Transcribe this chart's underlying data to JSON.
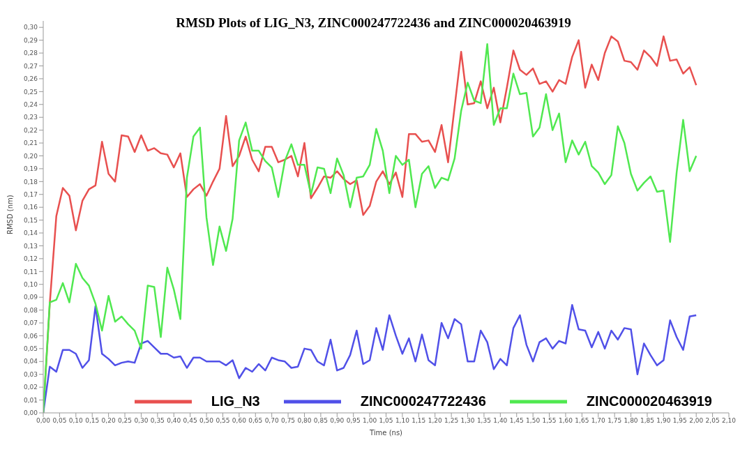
{
  "chart_data": {
    "type": "line",
    "title": "RMSD Plots of LIG_N3, ZINC000247722436 and ZINC000020463919",
    "xlabel": "Time (ns)",
    "ylabel": "RMSD (nm)",
    "x": [
      0,
      0.02,
      0.04,
      0.06,
      0.08,
      0.1,
      0.12,
      0.14,
      0.16,
      0.18,
      0.2,
      0.22,
      0.24,
      0.26,
      0.28,
      0.3,
      0.32,
      0.34,
      0.36,
      0.38,
      0.4,
      0.42,
      0.44,
      0.46,
      0.48,
      0.5,
      0.52,
      0.54,
      0.56,
      0.58,
      0.6,
      0.62,
      0.64,
      0.66,
      0.68,
      0.7,
      0.72,
      0.74,
      0.76,
      0.78,
      0.8,
      0.82,
      0.84,
      0.86,
      0.88,
      0.9,
      0.92,
      0.94,
      0.96,
      0.98,
      1,
      1.02,
      1.04,
      1.06,
      1.08,
      1.1,
      1.12,
      1.14,
      1.16,
      1.18,
      1.2,
      1.22,
      1.24,
      1.26,
      1.28,
      1.3,
      1.32,
      1.34,
      1.36,
      1.38,
      1.4,
      1.42,
      1.44,
      1.46,
      1.48,
      1.5,
      1.52,
      1.54,
      1.56,
      1.58,
      1.6,
      1.62,
      1.64,
      1.66,
      1.68,
      1.7,
      1.72,
      1.74,
      1.76,
      1.78,
      1.8,
      1.82,
      1.84,
      1.86,
      1.88,
      1.9,
      1.92,
      1.94,
      1.96,
      1.98,
      2
    ],
    "series": [
      {
        "name": "LIG_N3",
        "color": "#e8504f",
        "values": [
          0,
          0.085,
          0.153,
          0.175,
          0.169,
          0.142,
          0.165,
          0.174,
          0.177,
          0.211,
          0.186,
          0.18,
          0.216,
          0.215,
          0.203,
          0.216,
          0.204,
          0.206,
          0.202,
          0.201,
          0.191,
          0.202,
          0.168,
          0.174,
          0.178,
          0.169,
          0.18,
          0.19,
          0.231,
          0.192,
          0.2,
          0.215,
          0.197,
          0.188,
          0.207,
          0.207,
          0.195,
          0.197,
          0.2,
          0.184,
          0.21,
          0.167,
          0.175,
          0.184,
          0.183,
          0.188,
          0.182,
          0.178,
          0.181,
          0.154,
          0.161,
          0.18,
          0.188,
          0.178,
          0.187,
          0.168,
          0.217,
          0.217,
          0.211,
          0.212,
          0.203,
          0.224,
          0.195,
          0.238,
          0.281,
          0.24,
          0.241,
          0.258,
          0.237,
          0.253,
          0.226,
          0.253,
          0.282,
          0.267,
          0.263,
          0.268,
          0.256,
          0.258,
          0.25,
          0.259,
          0.256,
          0.277,
          0.29,
          0.253,
          0.271,
          0.259,
          0.28,
          0.293,
          0.289,
          0.274,
          0.273,
          0.267,
          0.282,
          0.277,
          0.27,
          0.293,
          0.274,
          0.275,
          0.264,
          0.269,
          0.255
        ]
      },
      {
        "name": "ZINC000247722436",
        "color": "#5050e8",
        "values": [
          0,
          0.036,
          0.032,
          0.049,
          0.049,
          0.046,
          0.035,
          0.041,
          0.083,
          0.046,
          0.042,
          0.037,
          0.039,
          0.04,
          0.039,
          0.054,
          0.056,
          0.051,
          0.046,
          0.046,
          0.043,
          0.044,
          0.035,
          0.043,
          0.043,
          0.04,
          0.04,
          0.04,
          0.037,
          0.041,
          0.027,
          0.035,
          0.032,
          0.038,
          0.033,
          0.043,
          0.041,
          0.04,
          0.035,
          0.036,
          0.05,
          0.049,
          0.04,
          0.037,
          0.057,
          0.033,
          0.035,
          0.045,
          0.064,
          0.038,
          0.041,
          0.066,
          0.049,
          0.076,
          0.06,
          0.046,
          0.058,
          0.04,
          0.061,
          0.041,
          0.037,
          0.07,
          0.058,
          0.073,
          0.069,
          0.04,
          0.04,
          0.064,
          0.055,
          0.034,
          0.042,
          0.037,
          0.066,
          0.076,
          0.053,
          0.04,
          0.055,
          0.058,
          0.05,
          0.056,
          0.054,
          0.084,
          0.065,
          0.064,
          0.051,
          0.063,
          0.05,
          0.064,
          0.057,
          0.066,
          0.065,
          0.03,
          0.054,
          0.045,
          0.037,
          0.041,
          0.072,
          0.059,
          0.049,
          0.075,
          0.076
        ]
      },
      {
        "name": "ZINC000020463919",
        "color": "#50e850",
        "values": [
          0,
          0.086,
          0.088,
          0.101,
          0.086,
          0.116,
          0.105,
          0.099,
          0.085,
          0.064,
          0.091,
          0.071,
          0.075,
          0.069,
          0.064,
          0.05,
          0.099,
          0.098,
          0.059,
          0.113,
          0.096,
          0.073,
          0.183,
          0.215,
          0.222,
          0.152,
          0.115,
          0.145,
          0.126,
          0.151,
          0.212,
          0.226,
          0.204,
          0.204,
          0.196,
          0.191,
          0.168,
          0.196,
          0.209,
          0.193,
          0.193,
          0.17,
          0.191,
          0.19,
          0.171,
          0.198,
          0.185,
          0.16,
          0.183,
          0.184,
          0.193,
          0.221,
          0.204,
          0.171,
          0.2,
          0.193,
          0.197,
          0.16,
          0.186,
          0.192,
          0.175,
          0.183,
          0.181,
          0.198,
          0.235,
          0.257,
          0.243,
          0.241,
          0.287,
          0.224,
          0.237,
          0.237,
          0.264,
          0.248,
          0.249,
          0.215,
          0.222,
          0.248,
          0.22,
          0.233,
          0.195,
          0.212,
          0.201,
          0.211,
          0.192,
          0.187,
          0.178,
          0.185,
          0.223,
          0.21,
          0.186,
          0.173,
          0.179,
          0.184,
          0.172,
          0.173,
          0.133,
          0.187,
          0.228,
          0.188,
          0.2
        ]
      }
    ],
    "xlim": [
      0,
      2.1
    ],
    "xticks": [
      {
        "value": 0,
        "label": "0,00"
      },
      {
        "value": 0.05,
        "label": "0,05"
      },
      {
        "value": 0.1,
        "label": "0,10"
      },
      {
        "value": 0.15,
        "label": "0,15"
      },
      {
        "value": 0.2,
        "label": "0,20"
      },
      {
        "value": 0.25,
        "label": "0,25"
      },
      {
        "value": 0.3,
        "label": "0,30"
      },
      {
        "value": 0.35,
        "label": "0,35"
      },
      {
        "value": 0.4,
        "label": "0,40"
      },
      {
        "value": 0.45,
        "label": "0,45"
      },
      {
        "value": 0.5,
        "label": "0,50"
      },
      {
        "value": 0.55,
        "label": "0,55"
      },
      {
        "value": 0.6,
        "label": "0,60"
      },
      {
        "value": 0.65,
        "label": "0,65"
      },
      {
        "value": 0.7,
        "label": "0,70"
      },
      {
        "value": 0.75,
        "label": "0,75"
      },
      {
        "value": 0.8,
        "label": "0,80"
      },
      {
        "value": 0.85,
        "label": "0,85"
      },
      {
        "value": 0.9,
        "label": "0,90"
      },
      {
        "value": 0.95,
        "label": "0,95"
      },
      {
        "value": 1,
        "label": "1,00"
      },
      {
        "value": 1.05,
        "label": "1,05"
      },
      {
        "value": 1.1,
        "label": "1,10"
      },
      {
        "value": 1.15,
        "label": "1,15"
      },
      {
        "value": 1.2,
        "label": "1,20"
      },
      {
        "value": 1.25,
        "label": "1,25"
      },
      {
        "value": 1.3,
        "label": "1,30"
      },
      {
        "value": 1.35,
        "label": "1,35"
      },
      {
        "value": 1.4,
        "label": "1,40"
      },
      {
        "value": 1.45,
        "label": "1,45"
      },
      {
        "value": 1.5,
        "label": "1,50"
      },
      {
        "value": 1.55,
        "label": "1,55"
      },
      {
        "value": 1.6,
        "label": "1,60"
      },
      {
        "value": 1.65,
        "label": "1,65"
      },
      {
        "value": 1.7,
        "label": "1,70"
      },
      {
        "value": 1.75,
        "label": "1,75"
      },
      {
        "value": 1.8,
        "label": "1,80"
      },
      {
        "value": 1.85,
        "label": "1,85"
      },
      {
        "value": 1.9,
        "label": "1,90"
      },
      {
        "value": 1.95,
        "label": "1,95"
      },
      {
        "value": 2,
        "label": "2,00"
      },
      {
        "value": 2.05,
        "label": "2,05"
      },
      {
        "value": 2.1,
        "label": "2,10"
      }
    ],
    "ylim": [
      0,
      0.305
    ],
    "yticks": [
      {
        "value": 0,
        "label": "0,00"
      },
      {
        "value": 0.01,
        "label": "0,01"
      },
      {
        "value": 0.02,
        "label": "0,02"
      },
      {
        "value": 0.03,
        "label": "0,03"
      },
      {
        "value": 0.04,
        "label": "0,04"
      },
      {
        "value": 0.05,
        "label": "0,05"
      },
      {
        "value": 0.06,
        "label": "0,06"
      },
      {
        "value": 0.07,
        "label": "0,07"
      },
      {
        "value": 0.08,
        "label": "0,08"
      },
      {
        "value": 0.09,
        "label": "0,09"
      },
      {
        "value": 0.1,
        "label": "0,10"
      },
      {
        "value": 0.11,
        "label": "0,11"
      },
      {
        "value": 0.12,
        "label": "0,12"
      },
      {
        "value": 0.13,
        "label": "0,13"
      },
      {
        "value": 0.14,
        "label": "0,14"
      },
      {
        "value": 0.15,
        "label": "0,15"
      },
      {
        "value": 0.16,
        "label": "0,16"
      },
      {
        "value": 0.17,
        "label": "0,17"
      },
      {
        "value": 0.18,
        "label": "0,18"
      },
      {
        "value": 0.19,
        "label": "0,19"
      },
      {
        "value": 0.2,
        "label": "0,20"
      },
      {
        "value": 0.21,
        "label": "0,21"
      },
      {
        "value": 0.22,
        "label": "0,22"
      },
      {
        "value": 0.23,
        "label": "0,23"
      },
      {
        "value": 0.24,
        "label": "0,24"
      },
      {
        "value": 0.25,
        "label": "0,25"
      },
      {
        "value": 0.26,
        "label": "0,26"
      },
      {
        "value": 0.27,
        "label": "0,27"
      },
      {
        "value": 0.28,
        "label": "0,28"
      },
      {
        "value": 0.29,
        "label": "0,29"
      },
      {
        "value": 0.3,
        "label": "0,30"
      }
    ],
    "grid": false,
    "legend": "bottom",
    "marker": "none",
    "line_style": "solid"
  }
}
